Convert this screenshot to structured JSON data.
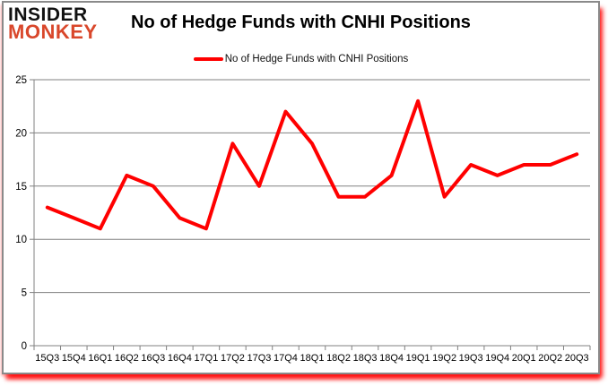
{
  "logo": {
    "line1": "INSIDER",
    "line2": "MONKEY",
    "line1_color": "#111111",
    "line2_color": "#d9472b"
  },
  "header": {
    "title": "No of Hedge Funds with CNHI Positions"
  },
  "legend": {
    "label": "No of Hedge Funds with CNHI Positions",
    "swatch_color": "#ff0000"
  },
  "chart_data": {
    "type": "line",
    "title": "No of Hedge Funds with CNHI Positions",
    "categories": [
      "15Q3",
      "15Q4",
      "16Q1",
      "16Q2",
      "16Q3",
      "16Q4",
      "17Q1",
      "17Q2",
      "17Q3",
      "17Q4",
      "18Q1",
      "18Q2",
      "18Q3",
      "18Q4",
      "19Q1",
      "19Q2",
      "19Q3",
      "19Q4",
      "20Q1",
      "20Q2",
      "20Q3"
    ],
    "series": [
      {
        "name": "No of Hedge Funds with CNHI Positions",
        "color": "#ff0000",
        "values": [
          13,
          12,
          11,
          16,
          15,
          12,
          11,
          19,
          15,
          22,
          19,
          14,
          14,
          16,
          23,
          14,
          17,
          16,
          17,
          17,
          18
        ]
      }
    ],
    "xlabel": "",
    "ylabel": "",
    "ylim": [
      0,
      25
    ],
    "yticks": [
      0,
      5,
      10,
      15,
      20,
      25
    ],
    "grid": "horizontal",
    "legend_position": "top",
    "gridline_color": "#808080",
    "axis_color": "#808080",
    "tick_label_color": "#000000"
  }
}
